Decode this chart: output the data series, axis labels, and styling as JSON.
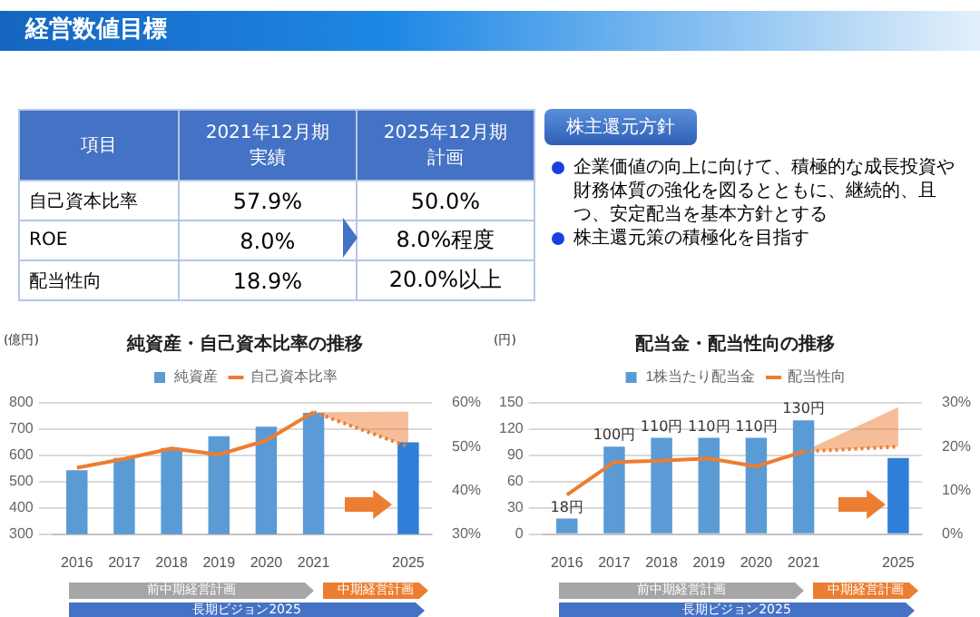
{
  "chart_data": [
    {
      "type": "other",
      "title": "経営数値目標",
      "annotations": [
        "項目",
        "2021年12月期",
        "実績",
        "2025年12月期",
        "計画",
        "自己資本比率",
        "57.9%",
        "50.0%",
        "ROE",
        "8.0%",
        "8.0%程度",
        "配当性向",
        "18.9%",
        "20.0%以上"
      ]
    },
    {
      "type": "other",
      "title": "株主還元方針",
      "annotations": [
        "企業価値の向上に向けて、積極的な成長投資や財務体質の強化を図るとともに、継続的、且つ、安定配当を基本方針とする",
        "株主還元策の積極化を目指す"
      ]
    },
    {
      "type": "bar",
      "title": "純資産・自己資本比率の推移",
      "ylabel": "(億円)",
      "categories": [
        "2016",
        "2017",
        "2018",
        "2019",
        "2020",
        "2021",
        null,
        "2025"
      ],
      "series": [
        {
          "name": "純資産",
          "type": "bar",
          "color": "#5b9bd5",
          "colors": [
            "#5b9bd5",
            "#5b9bd5",
            "#5b9bd5",
            "#5b9bd5",
            "#5b9bd5",
            "#5b9bd5",
            "#5b9bd5",
            "#2f7fd8"
          ],
          "values": [
            544,
            590,
            628,
            673,
            709,
            762,
            null,
            650
          ]
        },
        {
          "name": "自己資本比率",
          "type": "line",
          "axis": "y2",
          "color": "#ed7d31",
          "values": [
            45.2,
            47.2,
            49.6,
            48.2,
            51.4,
            57.9,
            null,
            null
          ]
        },
        {
          "type": "line",
          "axis": "y2",
          "color": "#ed7d31",
          "line_style": "dotted",
          "values": [
            null,
            null,
            null,
            null,
            null,
            57.9,
            null,
            50
          ],
          "lower": [
            null,
            null,
            null,
            null,
            null,
            57.9,
            null,
            50
          ],
          "upper": [
            null,
            null,
            null,
            null,
            null,
            57.9,
            null,
            58
          ]
        }
      ],
      "ylim": [
        300,
        800
      ],
      "yticks": [
        300,
        400,
        500,
        600,
        700,
        800
      ],
      "y2lim": [
        30,
        60
      ],
      "y2ticks": [
        {
          "value": 30,
          "label": "30%"
        },
        {
          "value": 40,
          "label": "40%"
        },
        {
          "value": 50,
          "label": "50%"
        },
        {
          "value": 60,
          "label": "60%"
        }
      ],
      "grid": "y",
      "legend": "top",
      "marker": "none",
      "annotations": [
        "前中期経営計画",
        "中期経営計画",
        "長期ビジョン2025"
      ]
    },
    {
      "type": "bar",
      "title": "配当金・配当性向の推移",
      "ylabel": "(円)",
      "categories": [
        "2016",
        "2017",
        "2018",
        "2019",
        "2020",
        "2021",
        null,
        "2025"
      ],
      "series": [
        {
          "name": "1株当たり配当金",
          "type": "bar",
          "color": "#5b9bd5",
          "colors": [
            "#5b9bd5",
            "#5b9bd5",
            "#5b9bd5",
            "#5b9bd5",
            "#5b9bd5",
            "#5b9bd5",
            "#5b9bd5",
            "#2f7fd8"
          ],
          "values": [
            18,
            100,
            110,
            110,
            110,
            130,
            null,
            87
          ],
          "value_labels": [
            "18円",
            "100円",
            "110円",
            "110円",
            "110円",
            "130円",
            null,
            null
          ]
        },
        {
          "name": "配当性向",
          "type": "line",
          "axis": "y2",
          "color": "#ed7d31",
          "values": [
            9,
            16.5,
            16.8,
            17.3,
            15.5,
            18.9,
            null,
            null
          ]
        },
        {
          "type": "line",
          "axis": "y2",
          "color": "#ed7d31",
          "line_style": "dotted",
          "values": [
            null,
            null,
            null,
            null,
            null,
            18.9,
            null,
            20
          ],
          "lower": [
            null,
            null,
            null,
            null,
            null,
            18.9,
            null,
            20
          ],
          "upper": [
            null,
            null,
            null,
            null,
            null,
            18.9,
            null,
            29
          ]
        }
      ],
      "ylim": [
        0,
        150
      ],
      "yticks": [
        0,
        30,
        60,
        90,
        120,
        150
      ],
      "y2lim": [
        0,
        30
      ],
      "y2ticks": [
        {
          "value": 0,
          "label": "0%"
        },
        {
          "value": 10,
          "label": "10%"
        },
        {
          "value": 20,
          "label": "20%"
        },
        {
          "value": 30,
          "label": "30%"
        }
      ],
      "grid": "y",
      "legend": "top",
      "marker": "none",
      "annotations": [
        "前中期経営計画",
        "中期経営計画",
        "長期ビジョン2025"
      ]
    }
  ]
}
